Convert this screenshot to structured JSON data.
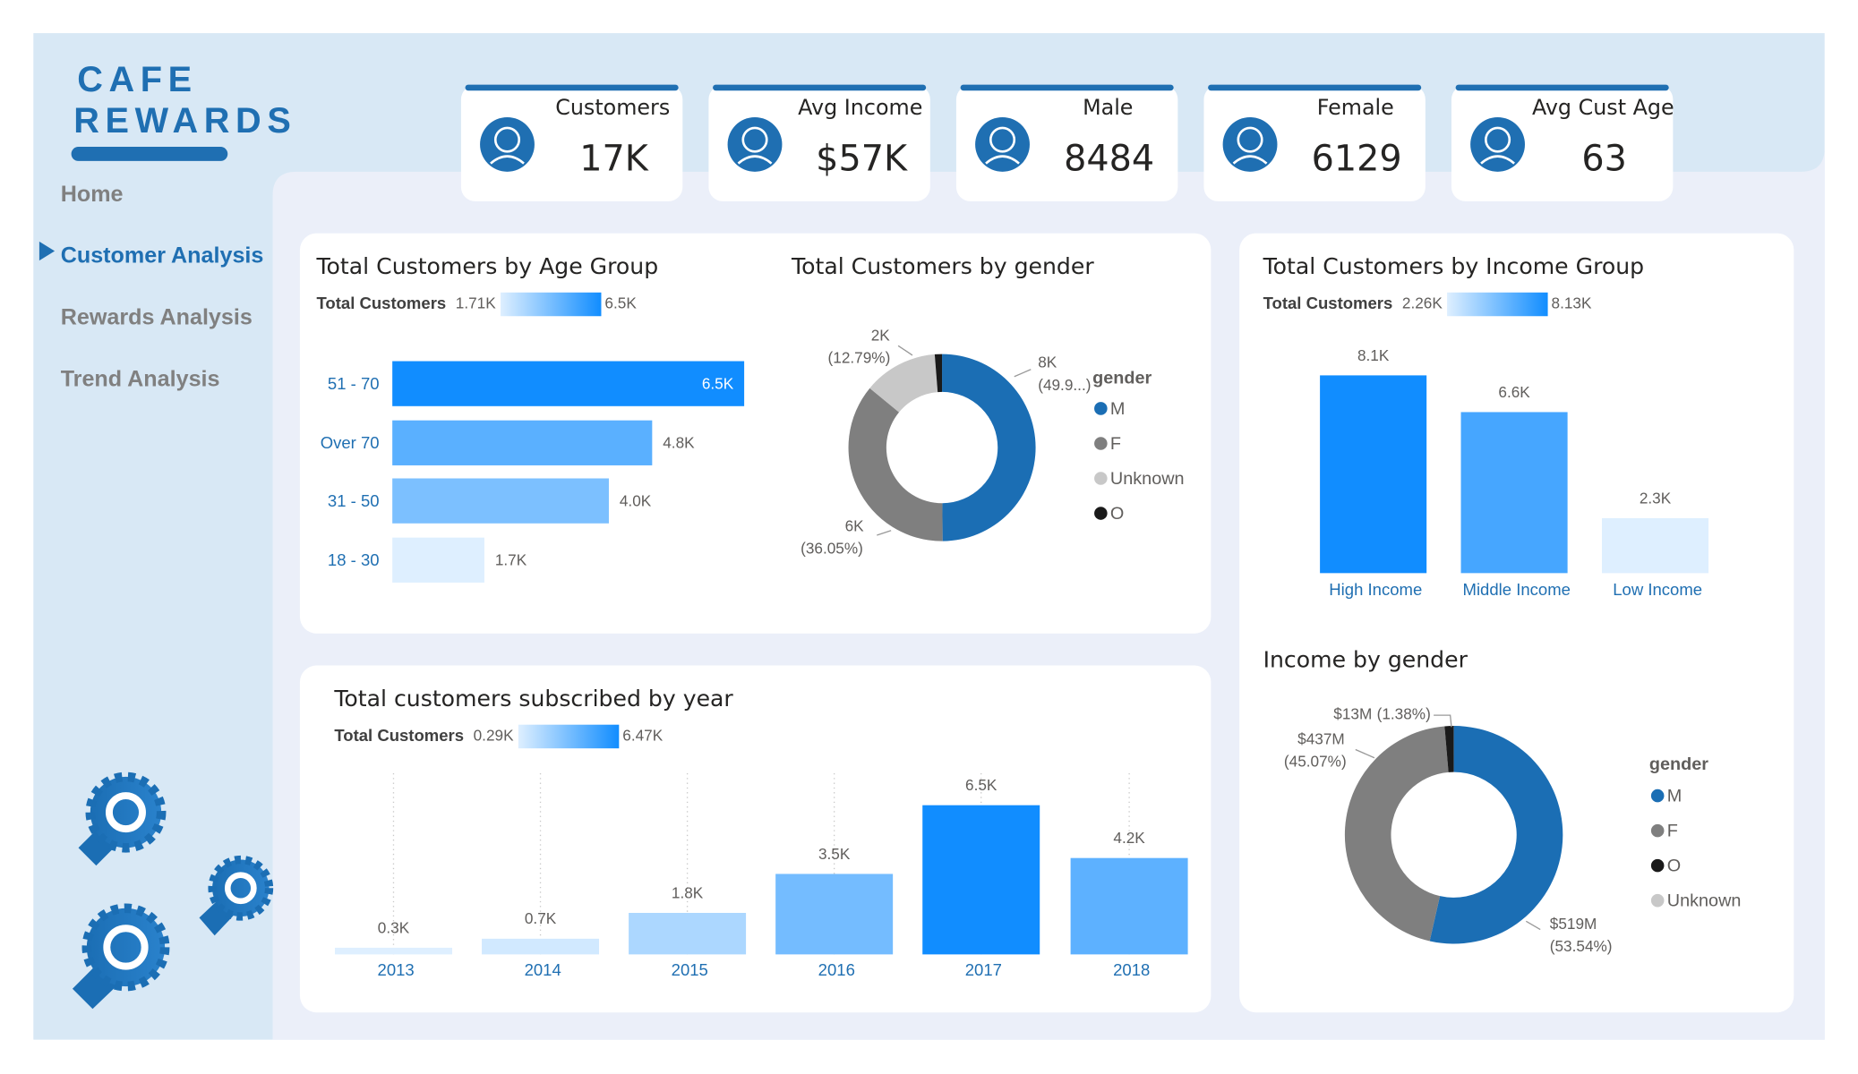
{
  "nav": {
    "brand": [
      "CAFE",
      "REWARDS"
    ],
    "items": [
      "Home",
      "Customer Analysis",
      "Rewards Analysis",
      "Trend Analysis"
    ],
    "active": "Customer Analysis"
  },
  "kpis": [
    {
      "label": "Customers",
      "value": "17K"
    },
    {
      "label": "Avg Income",
      "value": "$57K"
    },
    {
      "label": "Male",
      "value": 8484
    },
    {
      "label": "Female",
      "value": 6129
    },
    {
      "label": "Avg Cust Age",
      "value": 63
    }
  ],
  "chart_data": [
    {
      "type": "hbar",
      "title": "Total Customers by Age Group",
      "color_scale": {
        "label": "Total Customers",
        "min": 1710,
        "max": 6500,
        "min_label": "1.71K",
        "max_label": "6.5K",
        "colors": [
          "#deefff",
          "#118dff"
        ]
      },
      "categories": [
        "51 - 70",
        "Over 70",
        "31 - 50",
        "18 - 30"
      ],
      "values": [
        6500,
        4800,
        4000,
        1700
      ],
      "value_labels": [
        "6.5K",
        "4.8K",
        "4.0K",
        "1.7K"
      ]
    },
    {
      "type": "donut",
      "title": "Total Customers by gender",
      "legend_title": "gender",
      "categories": [
        "M",
        "F",
        "Unknown",
        "O"
      ],
      "values": [
        8484,
        6129,
        2175,
        212
      ],
      "colors": [
        "#1b6eb4",
        "#7f7f7f",
        "#c8c8c8",
        "#1a1a1a"
      ],
      "value_labels": [
        "8K",
        "6K",
        "2K",
        null
      ],
      "percent_labels": [
        "(49.9...)",
        "(36.05%)",
        "(12.79%)",
        null
      ]
    },
    {
      "type": "bar",
      "title": "Total Customers by Income Group",
      "color_scale": {
        "label": "Total Customers",
        "min": 2260,
        "max": 8130,
        "min_label": "2.26K",
        "max_label": "8.13K",
        "colors": [
          "#deefff",
          "#118dff"
        ]
      },
      "categories": [
        "High Income",
        "Middle Income",
        "Low Income"
      ],
      "values": [
        8130,
        6620,
        2260
      ],
      "value_labels": [
        "8.1K",
        "6.6K",
        "2.3K"
      ]
    },
    {
      "type": "bar",
      "title": "Total customers subscribed by year",
      "color_scale": {
        "label": "Total Customers",
        "min": 290,
        "max": 6470,
        "min_label": "0.29K",
        "max_label": "6.47K",
        "colors": [
          "#deefff",
          "#118dff"
        ]
      },
      "categories": [
        "2013",
        "2014",
        "2015",
        "2016",
        "2017",
        "2018"
      ],
      "values": [
        290,
        680,
        1800,
        3490,
        6470,
        4180
      ],
      "value_labels": [
        "0.3K",
        "0.7K",
        "1.8K",
        "3.5K",
        "6.5K",
        "4.2K"
      ]
    },
    {
      "type": "donut",
      "title": "Income by gender",
      "legend_title": "gender",
      "categories": [
        "M",
        "F",
        "O",
        "Unknown"
      ],
      "values": [
        519,
        437,
        13,
        0.1
      ],
      "colors": [
        "#1b6eb4",
        "#7f7f7f",
        "#1a1a1a",
        "#c8c8c8"
      ],
      "value_labels": [
        "$519M",
        "$437M",
        "$13M",
        null
      ],
      "percent_labels": [
        "(53.54%)",
        "(45.07%)",
        "(1.38%)",
        null
      ]
    }
  ]
}
